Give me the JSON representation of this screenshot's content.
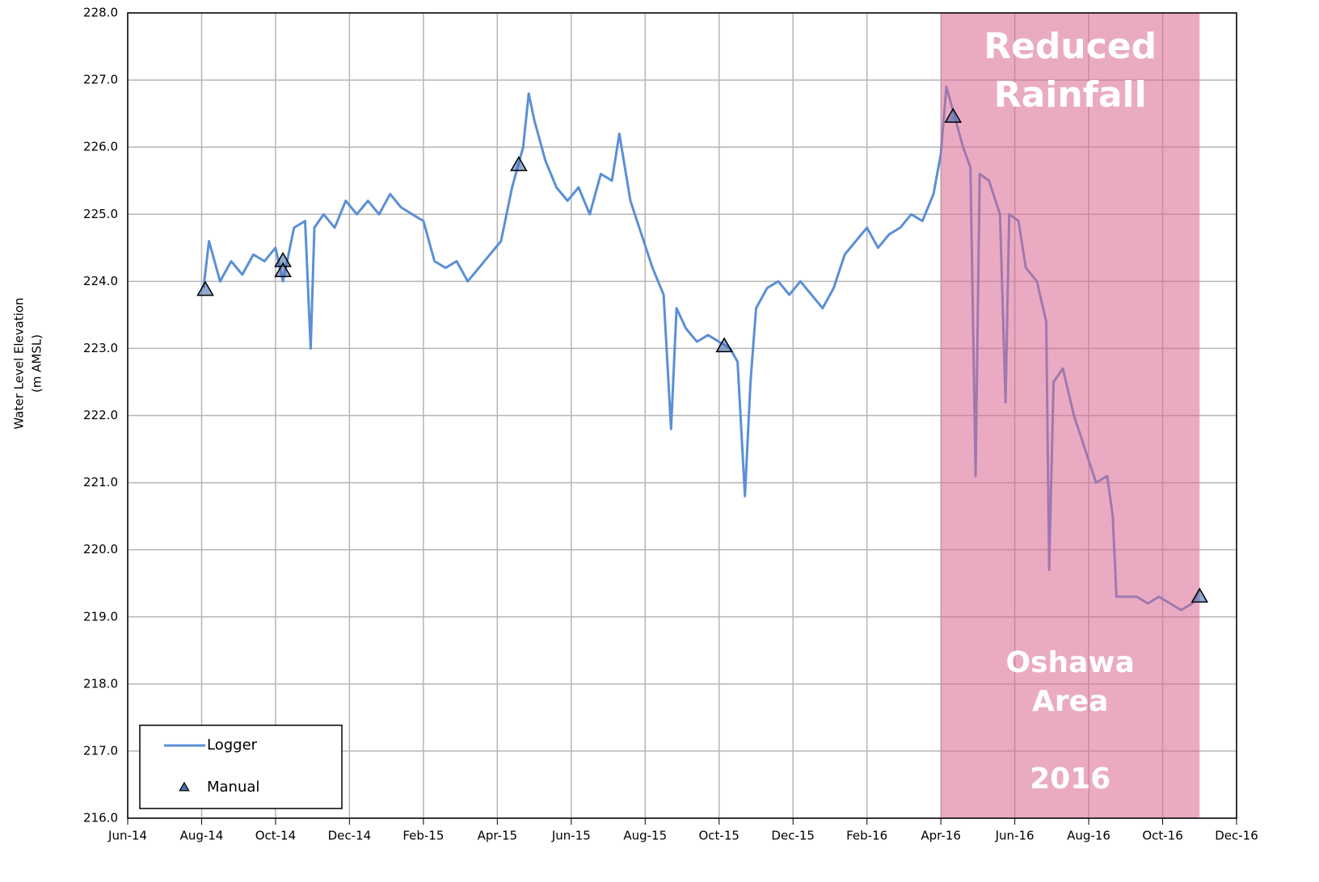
{
  "chart_data": {
    "type": "line",
    "y_label": [
      "Water Level Elevation",
      "(m AMSL)"
    ],
    "annotations": [
      "Reduced",
      "Rainfall",
      "Oshawa",
      "Area",
      "2016"
    ],
    "shaded_region": {
      "xlim": [
        22,
        29
      ],
      "color": "#d9668f"
    },
    "xlim": [
      0,
      30
    ],
    "xticks": [
      {
        "value": 0,
        "label": "Jun-14"
      },
      {
        "value": 2,
        "label": "Aug-14"
      },
      {
        "value": 4,
        "label": "Oct-14"
      },
      {
        "value": 6,
        "label": "Dec-14"
      },
      {
        "value": 8,
        "label": "Feb-15"
      },
      {
        "value": 10,
        "label": "Apr-15"
      },
      {
        "value": 12,
        "label": "Jun-15"
      },
      {
        "value": 14,
        "label": "Aug-15"
      },
      {
        "value": 16,
        "label": "Oct-15"
      },
      {
        "value": 18,
        "label": "Dec-15"
      },
      {
        "value": 20,
        "label": "Feb-16"
      },
      {
        "value": 22,
        "label": "Apr-16"
      },
      {
        "value": 24,
        "label": "Jun-16"
      },
      {
        "value": 26,
        "label": "Aug-16"
      },
      {
        "value": 28,
        "label": "Oct-16"
      },
      {
        "value": 30,
        "label": "Dec-16"
      }
    ],
    "ylim": [
      216,
      228
    ],
    "yticks": [
      {
        "value": 216,
        "label": "216.0"
      },
      {
        "value": 217,
        "label": "217.0"
      },
      {
        "value": 218,
        "label": "218.0"
      },
      {
        "value": 219,
        "label": "219.0"
      },
      {
        "value": 220,
        "label": "220.0"
      },
      {
        "value": 221,
        "label": "221.0"
      },
      {
        "value": 222,
        "label": "222.0"
      },
      {
        "value": 223,
        "label": "223.0"
      },
      {
        "value": 224,
        "label": "224.0"
      },
      {
        "value": 225,
        "label": "225.0"
      },
      {
        "value": 226,
        "label": "226.0"
      },
      {
        "value": 227,
        "label": "227.0"
      },
      {
        "value": 228,
        "label": "228.0"
      }
    ],
    "grid": true,
    "legend": "lower left",
    "series": [
      {
        "name": "Logger",
        "color": "#5b8fd6",
        "x": [
          2.05,
          2.2,
          2.5,
          2.8,
          3.1,
          3.4,
          3.7,
          4.0,
          4.2,
          4.5,
          4.8,
          4.95,
          5.05,
          5.3,
          5.6,
          5.9,
          6.2,
          6.5,
          6.8,
          7.1,
          7.4,
          7.7,
          8.0,
          8.3,
          8.6,
          8.9,
          9.2,
          9.5,
          9.8,
          10.1,
          10.4,
          10.7,
          10.85,
          11.0,
          11.3,
          11.6,
          11.9,
          12.2,
          12.5,
          12.8,
          13.1,
          13.3,
          13.6,
          13.9,
          14.2,
          14.5,
          14.7,
          14.85,
          15.1,
          15.4,
          15.7,
          16.0,
          16.3,
          16.5,
          16.7,
          16.85,
          17.0,
          17.3,
          17.6,
          17.9,
          18.2,
          18.5,
          18.8,
          19.1,
          19.4,
          19.7,
          20.0,
          20.3,
          20.6,
          20.9,
          21.2,
          21.5,
          21.8,
          22.0,
          22.15,
          22.4,
          22.6,
          22.8,
          22.94,
          23.05,
          23.3,
          23.6,
          23.75,
          23.85,
          24.1,
          24.3,
          24.6,
          24.85,
          24.93,
          25.05,
          25.3,
          25.6,
          25.9,
          26.2,
          26.5,
          26.65,
          26.75,
          27.0,
          27.3,
          27.6,
          27.9,
          28.2,
          28.5,
          28.8,
          29.0
        ],
        "values": [
          223.9,
          224.6,
          224.0,
          224.3,
          224.1,
          224.4,
          224.3,
          224.5,
          224.0,
          224.8,
          224.9,
          223.0,
          224.8,
          225.0,
          224.8,
          225.2,
          225.0,
          225.2,
          225.0,
          225.3,
          225.1,
          225.0,
          224.9,
          224.3,
          224.2,
          224.3,
          224.0,
          224.2,
          224.4,
          224.6,
          225.4,
          226.0,
          226.8,
          226.4,
          225.8,
          225.4,
          225.2,
          225.4,
          225.0,
          225.6,
          225.5,
          226.2,
          225.2,
          224.7,
          224.2,
          223.8,
          221.8,
          223.6,
          223.3,
          223.1,
          223.2,
          223.1,
          223.0,
          222.8,
          220.8,
          222.5,
          223.6,
          223.9,
          224.0,
          223.8,
          224.0,
          223.8,
          223.6,
          223.9,
          224.4,
          224.6,
          224.8,
          224.5,
          224.7,
          224.8,
          225.0,
          224.9,
          225.3,
          225.9,
          226.9,
          226.4,
          226.0,
          225.7,
          221.1,
          225.6,
          225.5,
          225.0,
          222.2,
          225.0,
          224.9,
          224.2,
          224.0,
          223.4,
          219.7,
          222.5,
          222.7,
          222.0,
          221.5,
          221.0,
          221.1,
          220.5,
          219.3,
          219.3,
          219.3,
          219.2,
          219.3,
          219.2,
          219.1,
          219.2,
          219.4
        ]
      },
      {
        "name": "Manual",
        "color": "#4a6fb0",
        "marker": "triangle",
        "x": [
          2.1,
          4.2,
          4.2,
          10.58,
          16.14,
          22.33,
          29.0
        ],
        "values": [
          223.87,
          224.3,
          224.15,
          225.73,
          223.03,
          226.45,
          219.3
        ]
      }
    ]
  }
}
